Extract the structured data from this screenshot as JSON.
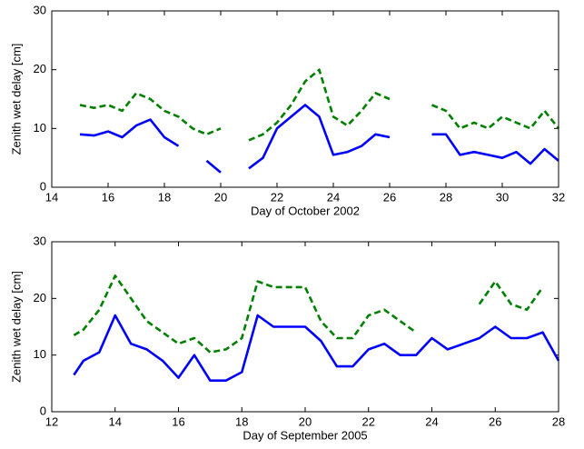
{
  "chart_data": [
    {
      "type": "line",
      "xlabel": "Day of October 2002",
      "ylabel": "Zenith wet delay [cm]",
      "x": [
        15,
        15.5,
        16,
        16.5,
        17,
        17.5,
        18,
        18.5,
        19,
        19.5,
        20,
        20.5,
        21,
        21.5,
        22,
        22.5,
        23,
        23.5,
        24,
        24.5,
        25,
        25.5,
        26,
        26.5,
        27,
        27.5,
        28,
        28.5,
        29,
        29.5,
        30,
        30.5,
        31,
        31.5,
        32
      ],
      "series": [
        {
          "color": "#0000ff",
          "style": "solid",
          "values": [
            9,
            8.8,
            9.5,
            8.5,
            10.5,
            11.5,
            8.5,
            7,
            null,
            4.5,
            2.5,
            null,
            3.2,
            5,
            10,
            12,
            14,
            12,
            5.5,
            6,
            7,
            9,
            8.5,
            null,
            null,
            9,
            9,
            5.5,
            6,
            5.5,
            5,
            6,
            4,
            6.5,
            4.5
          ]
        },
        {
          "color": "#008000",
          "style": "dashed",
          "values": [
            14,
            13.5,
            14,
            13,
            16,
            15,
            13,
            12,
            10,
            9,
            10,
            null,
            8,
            9,
            11,
            14,
            18,
            20,
            12,
            10.5,
            13,
            16,
            15,
            null,
            null,
            14,
            13,
            10,
            11,
            10,
            12,
            11,
            10,
            13,
            10
          ]
        }
      ],
      "xlim": [
        14,
        32
      ],
      "xticks": [
        14,
        16,
        18,
        20,
        22,
        24,
        26,
        28,
        30,
        32
      ],
      "ylim": [
        0,
        30
      ],
      "yticks": [
        0,
        10,
        20,
        30
      ]
    },
    {
      "type": "line",
      "xlabel": "Day of September 2005",
      "ylabel": "Zenith wet delay [cm]",
      "x": [
        12.7,
        13,
        13.5,
        14,
        14.5,
        15,
        15.5,
        16,
        16.5,
        17,
        17.5,
        18,
        18.5,
        19,
        19.5,
        20,
        20.5,
        21,
        21.5,
        22,
        22.5,
        23,
        23.5,
        24,
        24.5,
        25,
        25.5,
        26,
        26.5,
        27,
        27.5,
        28
      ],
      "series": [
        {
          "color": "#0000ff",
          "style": "solid",
          "values": [
            6.5,
            9,
            10.5,
            17,
            12,
            11,
            9,
            6,
            10,
            5.5,
            5.5,
            7,
            17,
            15,
            15,
            15,
            12.5,
            8,
            8,
            11,
            12,
            10,
            10,
            13,
            11,
            12,
            13,
            15,
            13,
            13,
            14,
            9
          ]
        },
        {
          "color": "#008000",
          "style": "dashed",
          "values": [
            13.5,
            14.5,
            18,
            24,
            20,
            16,
            14,
            12,
            13,
            10.5,
            11,
            13,
            23,
            22,
            22,
            22,
            16,
            13,
            13,
            17,
            18,
            16,
            14,
            null,
            null,
            null,
            19,
            23,
            19,
            18,
            22,
            null
          ]
        }
      ],
      "xlim": [
        12,
        28
      ],
      "xticks": [
        12,
        14,
        16,
        18,
        20,
        22,
        24,
        26,
        28
      ],
      "ylim": [
        0,
        30
      ],
      "yticks": [
        0,
        10,
        20,
        30
      ]
    }
  ]
}
